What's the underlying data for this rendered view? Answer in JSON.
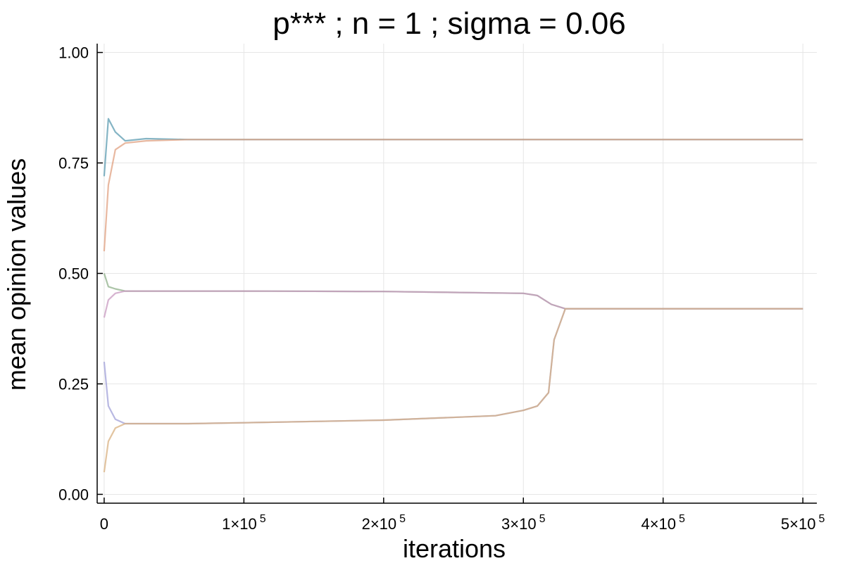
{
  "chart_data": {
    "type": "line",
    "title": "p***  ; n = 1 ; sigma = 0.06",
    "xlabel": "iterations",
    "ylabel": "mean opinion values",
    "xlim": [
      -5000,
      510000
    ],
    "ylim": [
      -0.02,
      1.02
    ],
    "grid": true,
    "legend": "none",
    "x_ticks": [
      {
        "value": 0,
        "base": "0",
        "exp": ""
      },
      {
        "value": 100000,
        "base": "1×10",
        "exp": "5"
      },
      {
        "value": 200000,
        "base": "2×10",
        "exp": "5"
      },
      {
        "value": 300000,
        "base": "3×10",
        "exp": "5"
      },
      {
        "value": 400000,
        "base": "4×10",
        "exp": "5"
      },
      {
        "value": 500000,
        "base": "5×10",
        "exp": "5"
      }
    ],
    "y_ticks": [
      {
        "value": 0.0,
        "label": "0.00"
      },
      {
        "value": 0.25,
        "label": "0.25"
      },
      {
        "value": 0.5,
        "label": "0.50"
      },
      {
        "value": 0.75,
        "label": "0.75"
      },
      {
        "value": 1.0,
        "label": "1.00"
      }
    ],
    "colors": [
      "#5b9bb0",
      "#e0a080",
      "#8fb08a",
      "#c89ac0",
      "#a0a0d8",
      "#d8b080",
      "#70a8a0",
      "#c08080"
    ],
    "series": [
      {
        "x": [
          0,
          3000,
          8000,
          15000,
          30000,
          60000,
          100000,
          200000,
          300000,
          400000,
          500000
        ],
        "values": [
          0.72,
          0.85,
          0.82,
          0.8,
          0.805,
          0.803,
          0.803,
          0.803,
          0.803,
          0.803,
          0.803
        ]
      },
      {
        "x": [
          0,
          3000,
          8000,
          15000,
          30000,
          60000,
          100000,
          200000,
          300000,
          400000,
          500000
        ],
        "values": [
          0.55,
          0.7,
          0.78,
          0.795,
          0.8,
          0.803,
          0.803,
          0.803,
          0.803,
          0.803,
          0.803
        ]
      },
      {
        "x": [
          0,
          3000,
          8000,
          15000,
          30000,
          60000,
          100000,
          200000,
          300000,
          310000,
          320000,
          330000,
          400000,
          500000
        ],
        "values": [
          0.5,
          0.47,
          0.465,
          0.46,
          0.46,
          0.46,
          0.46,
          0.459,
          0.455,
          0.45,
          0.43,
          0.42,
          0.42,
          0.42
        ]
      },
      {
        "x": [
          0,
          3000,
          8000,
          15000,
          30000,
          60000,
          100000,
          200000,
          300000,
          310000,
          320000,
          330000,
          400000,
          500000
        ],
        "values": [
          0.4,
          0.44,
          0.455,
          0.46,
          0.46,
          0.46,
          0.46,
          0.459,
          0.455,
          0.45,
          0.43,
          0.42,
          0.42,
          0.42
        ]
      },
      {
        "x": [
          0,
          3000,
          8000,
          15000,
          30000,
          60000,
          100000,
          200000,
          280000,
          300000,
          310000,
          318000,
          322000,
          330000,
          400000,
          500000
        ],
        "values": [
          0.3,
          0.2,
          0.17,
          0.16,
          0.16,
          0.16,
          0.162,
          0.168,
          0.178,
          0.19,
          0.2,
          0.23,
          0.35,
          0.42,
          0.42,
          0.42
        ]
      },
      {
        "x": [
          0,
          3000,
          8000,
          15000,
          30000,
          60000,
          100000,
          200000,
          280000,
          300000,
          310000,
          318000,
          322000,
          330000,
          400000,
          500000
        ],
        "values": [
          0.05,
          0.12,
          0.15,
          0.16,
          0.16,
          0.16,
          0.162,
          0.168,
          0.178,
          0.19,
          0.2,
          0.23,
          0.35,
          0.42,
          0.42,
          0.42
        ]
      }
    ]
  }
}
